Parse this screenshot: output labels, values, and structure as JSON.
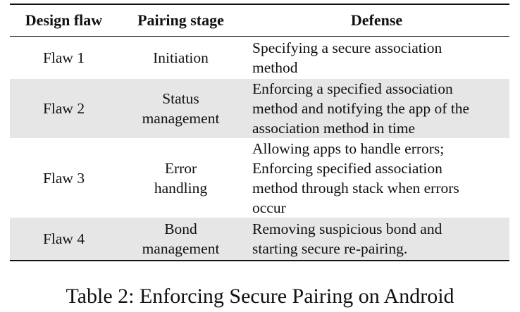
{
  "table": {
    "headers": [
      "Design flaw",
      "Pairing stage",
      "Defense"
    ],
    "rows": [
      {
        "flaw": "Flaw 1",
        "stage": [
          "Initiation"
        ],
        "defense": [
          "Specifying a secure association",
          "method"
        ],
        "shaded": false
      },
      {
        "flaw": "Flaw 2",
        "stage": [
          "Status",
          "management"
        ],
        "defense": [
          "Enforcing a specified association",
          "method and notifying the app of the",
          "association method in time"
        ],
        "shaded": true
      },
      {
        "flaw": "Flaw 3",
        "stage": [
          "Error",
          "handling"
        ],
        "defense": [
          "Allowing apps to handle errors;",
          "Enforcing specified association",
          "method through stack when errors",
          "occur"
        ],
        "shaded": false
      },
      {
        "flaw": "Flaw 4",
        "stage": [
          "Bond",
          "management"
        ],
        "defense": [
          "Removing suspicious bond and",
          "starting secure re-pairing."
        ],
        "shaded": true
      }
    ]
  },
  "caption": "Table 2: Enforcing Secure Pairing on Android"
}
